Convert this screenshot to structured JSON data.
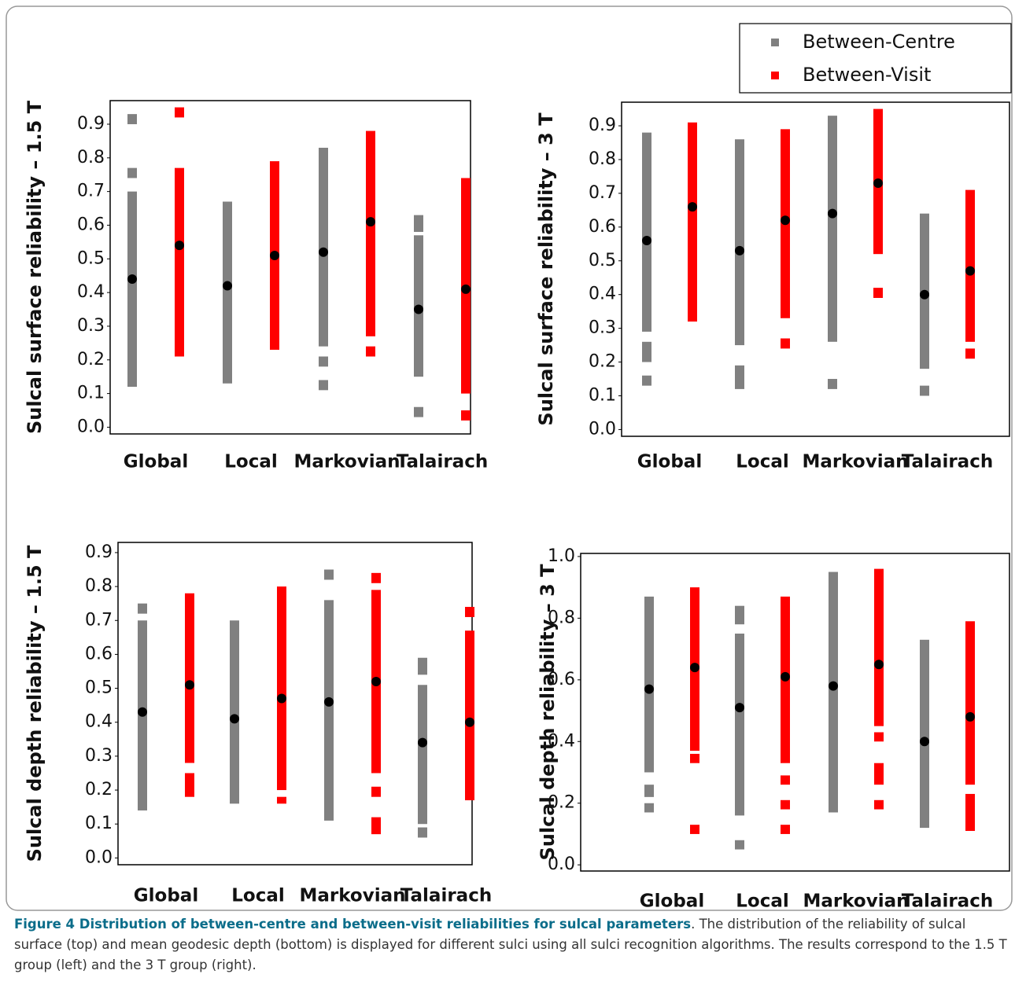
{
  "chart_data": [
    {
      "type": "strip",
      "ylabel": "Sulcal surface reliability – 1.5 T",
      "categories": [
        "Global",
        "Local",
        "Markovian",
        "Talairach"
      ],
      "ylim": [
        -0.02,
        0.97
      ],
      "yticks": [
        {
          "value": 0,
          "label": "0.0"
        },
        0.1,
        0.2,
        0.3,
        0.4,
        0.5,
        0.6,
        0.7,
        0.8,
        0.9
      ],
      "series": [
        {
          "color": "#808080",
          "ranges": [
            [
              [
                0.9,
                0.93
              ],
              [
                0.74,
                0.77
              ],
              [
                0.12,
                0.7
              ]
            ],
            [
              [
                0.13,
                0.67
              ]
            ],
            [
              [
                0.24,
                0.83
              ],
              [
                0.18,
                0.21
              ],
              [
                0.11,
                0.14
              ]
            ],
            [
              [
                0.58,
                0.63
              ],
              [
                0.15,
                0.57
              ],
              [
                0.03,
                0.06
              ]
            ]
          ],
          "means": [
            0.44,
            0.42,
            0.52,
            0.35
          ]
        },
        {
          "color": "#ff0000",
          "ranges": [
            [
              [
                0.92,
                0.95
              ],
              [
                0.21,
                0.77
              ]
            ],
            [
              [
                0.23,
                0.79
              ]
            ],
            [
              [
                0.27,
                0.88
              ],
              [
                0.21,
                0.24
              ]
            ],
            [
              [
                0.1,
                0.74
              ],
              [
                0.02,
                0.05
              ]
            ]
          ],
          "means": [
            0.54,
            0.51,
            0.61,
            0.41
          ]
        }
      ]
    },
    {
      "type": "strip",
      "ylabel": "Sulcal surface reliability – 3 T",
      "categories": [
        "Global",
        "Local",
        "Markovian",
        "Talairach"
      ],
      "ylim": [
        -0.02,
        0.97
      ],
      "yticks": [
        {
          "value": 0,
          "label": "0.0"
        },
        0.1,
        0.2,
        0.3,
        0.4,
        0.5,
        0.6,
        0.7,
        0.8,
        0.9
      ],
      "legend": "top-right",
      "series": [
        {
          "name": "Between-Centre",
          "color": "#808080",
          "ranges": [
            [
              [
                0.29,
                0.88
              ],
              [
                0.2,
                0.26
              ],
              [
                0.13,
                0.16
              ]
            ],
            [
              [
                0.25,
                0.86
              ],
              [
                0.12,
                0.19
              ]
            ],
            [
              [
                0.26,
                0.93
              ],
              [
                0.12,
                0.15
              ]
            ],
            [
              [
                0.18,
                0.64
              ],
              [
                0.1,
                0.13
              ]
            ]
          ],
          "means": [
            0.56,
            0.53,
            0.64,
            0.4
          ]
        },
        {
          "name": "Between-Visit",
          "color": "#ff0000",
          "ranges": [
            [
              [
                0.32,
                0.91
              ]
            ],
            [
              [
                0.33,
                0.89
              ],
              [
                0.24,
                0.27
              ]
            ],
            [
              [
                0.52,
                0.95
              ],
              [
                0.39,
                0.42
              ]
            ],
            [
              [
                0.26,
                0.71
              ],
              [
                0.21,
                0.24
              ]
            ]
          ],
          "means": [
            0.66,
            0.62,
            0.73,
            0.47
          ]
        }
      ]
    },
    {
      "type": "strip",
      "ylabel": "Sulcal depth reliability – 1.5 T",
      "categories": [
        "Global",
        "Local",
        "Markovian",
        "Talairach"
      ],
      "ylim": [
        -0.02,
        0.93
      ],
      "yticks": [
        {
          "value": 0,
          "label": "0.0"
        },
        0.1,
        0.2,
        0.3,
        0.4,
        0.5,
        0.6,
        0.7,
        0.8,
        0.9
      ],
      "series": [
        {
          "color": "#808080",
          "ranges": [
            [
              [
                0.14,
                0.7
              ],
              [
                0.72,
                0.75
              ]
            ],
            [
              [
                0.16,
                0.7
              ]
            ],
            [
              [
                0.11,
                0.76
              ],
              [
                0.82,
                0.85
              ]
            ],
            [
              [
                0.06,
                0.09
              ],
              [
                0.1,
                0.51
              ],
              [
                0.54,
                0.59
              ]
            ]
          ],
          "means": [
            0.43,
            0.41,
            0.46,
            0.34
          ]
        },
        {
          "color": "#ff0000",
          "ranges": [
            [
              [
                0.18,
                0.25
              ],
              [
                0.28,
                0.78
              ]
            ],
            [
              [
                0.16,
                0.18
              ],
              [
                0.2,
                0.8
              ]
            ],
            [
              [
                0.07,
                0.12
              ],
              [
                0.18,
                0.21
              ],
              [
                0.25,
                0.79
              ],
              [
                0.81,
                0.84
              ]
            ],
            [
              [
                0.17,
                0.67
              ],
              [
                0.71,
                0.74
              ]
            ]
          ],
          "means": [
            0.51,
            0.47,
            0.52,
            0.4
          ]
        }
      ]
    },
    {
      "type": "strip",
      "ylabel": "Sulcal depth reliability – 3 T",
      "categories": [
        "Global",
        "Local",
        "Markovian",
        "Talairach"
      ],
      "ylim": [
        -0.02,
        1.01
      ],
      "yticks": [
        {
          "value": 0,
          "label": "0.0"
        },
        0.2,
        0.4,
        0.6,
        0.8,
        {
          "value": 1,
          "label": "1.0"
        }
      ],
      "series": [
        {
          "color": "#808080",
          "ranges": [
            [
              [
                0.17,
                0.2
              ],
              [
                0.22,
                0.26
              ],
              [
                0.3,
                0.87
              ]
            ],
            [
              [
                0.05,
                0.08
              ],
              [
                0.16,
                0.75
              ],
              [
                0.78,
                0.84
              ]
            ],
            [
              [
                0.17,
                0.95
              ]
            ],
            [
              [
                0.12,
                0.73
              ]
            ]
          ],
          "means": [
            0.57,
            0.51,
            0.58,
            0.4
          ]
        },
        {
          "color": "#ff0000",
          "ranges": [
            [
              [
                0.1,
                0.13
              ],
              [
                0.33,
                0.36
              ],
              [
                0.37,
                0.9
              ]
            ],
            [
              [
                0.1,
                0.13
              ],
              [
                0.18,
                0.21
              ],
              [
                0.26,
                0.29
              ],
              [
                0.33,
                0.87
              ]
            ],
            [
              [
                0.18,
                0.21
              ],
              [
                0.26,
                0.33
              ],
              [
                0.4,
                0.43
              ],
              [
                0.45,
                0.96
              ]
            ],
            [
              [
                0.11,
                0.23
              ],
              [
                0.26,
                0.79
              ]
            ]
          ],
          "means": [
            0.64,
            0.61,
            0.65,
            0.48
          ]
        }
      ]
    }
  ],
  "caption": {
    "title": "Figure 4 Distribution of between-centre and between-visit reliabilities for sulcal parameters",
    "text": ". The distribution of the reliability of sulcal surface (top) and mean geodesic depth (bottom) is displayed for different sulci using all sulci recognition algorithms. The results correspond to the 1.5 T group (left) and the 3 T group (right)."
  }
}
